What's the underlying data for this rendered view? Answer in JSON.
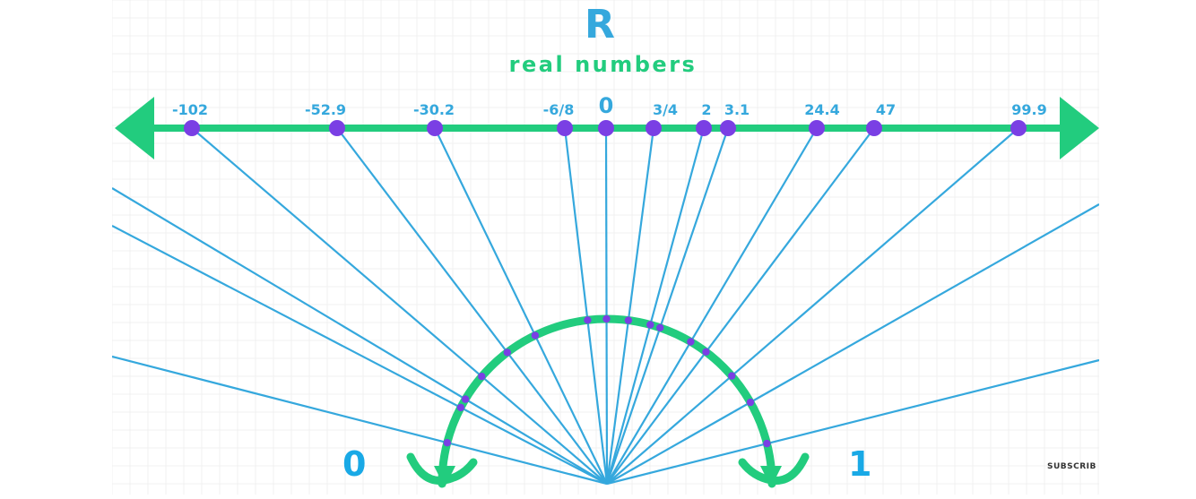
{
  "header": {
    "symbol": "R",
    "title": "real numbers"
  },
  "number_line": {
    "points": [
      {
        "label": "-102"
      },
      {
        "label": "-52.9"
      },
      {
        "label": "-30.2"
      },
      {
        "label": "-6/8"
      },
      {
        "label": "0"
      },
      {
        "label": "3/4"
      },
      {
        "label": "2"
      },
      {
        "label": "3.1"
      },
      {
        "label": "24.4"
      },
      {
        "label": "47"
      },
      {
        "label": "99.9"
      }
    ]
  },
  "semicircle": {
    "left_label": "0",
    "right_label": "1"
  },
  "overlay": {
    "subscribe_text": "SUBSCRIB"
  },
  "colors": {
    "line_green": "#22cc7e",
    "ray_blue": "#35a8dd",
    "point_purple": "#7a3fe4",
    "grid_gray": "#e6e6e6",
    "label_blue": "#19a9e6"
  }
}
